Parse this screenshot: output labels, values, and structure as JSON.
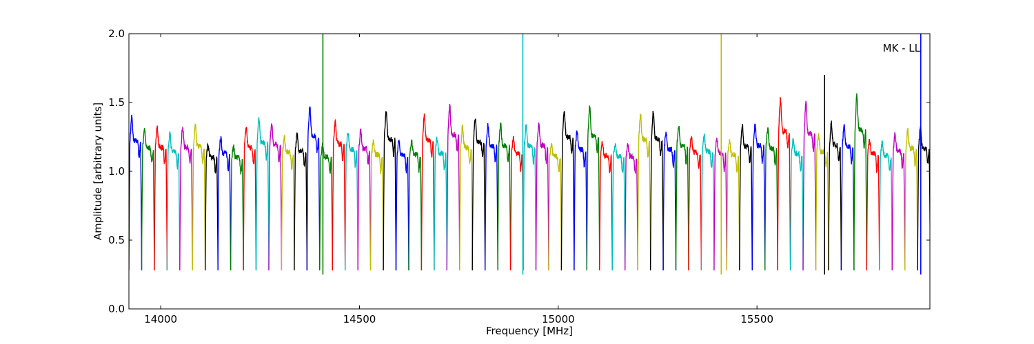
{
  "chart_data": {
    "type": "line",
    "title": "",
    "annotation": "MK - LL",
    "xlabel": "Frequency [MHz]",
    "ylabel": "Amplitude [arbitrary units]",
    "xlim": [
      13920,
      15935
    ],
    "ylim": [
      0.0,
      2.0
    ],
    "xticks": [
      14000,
      14500,
      15000,
      15500
    ],
    "yticks": [
      0.0,
      0.5,
      1.0,
      1.5,
      2.0
    ],
    "xtick_labels": [
      "14000",
      "14500",
      "15000",
      "15500"
    ],
    "ytick_labels": [
      "0.0",
      "0.5",
      "1.0",
      "1.5",
      "2.0"
    ],
    "grid": false,
    "series_colors": [
      "#0000ff",
      "#007f00",
      "#ff0000",
      "#00bfbf",
      "#bf00bf",
      "#bfbf00",
      "#000000"
    ],
    "channel_width_mhz": 32,
    "band_start_mhz": 13920,
    "channel_peaks": [
      1.4,
      1.31,
      1.32,
      1.27,
      1.32,
      1.33,
      1.19,
      1.24,
      1.18,
      1.32,
      1.38,
      1.35,
      1.25,
      1.27,
      1.47,
      1.19,
      1.37,
      1.29,
      1.3,
      1.22,
      1.43,
      1.22,
      1.22,
      1.41,
      1.24,
      1.48,
      1.32,
      1.39,
      1.34,
      1.34,
      1.24,
      1.33,
      1.34,
      1.2,
      1.45,
      1.29,
      1.47,
      1.21,
      1.2,
      1.19,
      1.42,
      1.43,
      1.29,
      1.33,
      1.25,
      1.26,
      1.24,
      1.22,
      1.33,
      1.34,
      1.31,
      1.53,
      1.23,
      1.5,
      1.26,
      1.35,
      1.33,
      1.55,
      1.23,
      1.21,
      1.27,
      1.3,
      1.31
    ],
    "spikes": [
      {
        "x": 14408,
        "y": 2.0,
        "color": "#007f00"
      },
      {
        "x": 14911,
        "y": 2.0,
        "color": "#00bfbf"
      },
      {
        "x": 15410,
        "y": 2.0,
        "color": "#bfbf00"
      },
      {
        "x": 15670,
        "y": 1.7,
        "color": "#000000"
      },
      {
        "x": 15912,
        "y": 2.0,
        "color": "#0000ff"
      }
    ]
  }
}
